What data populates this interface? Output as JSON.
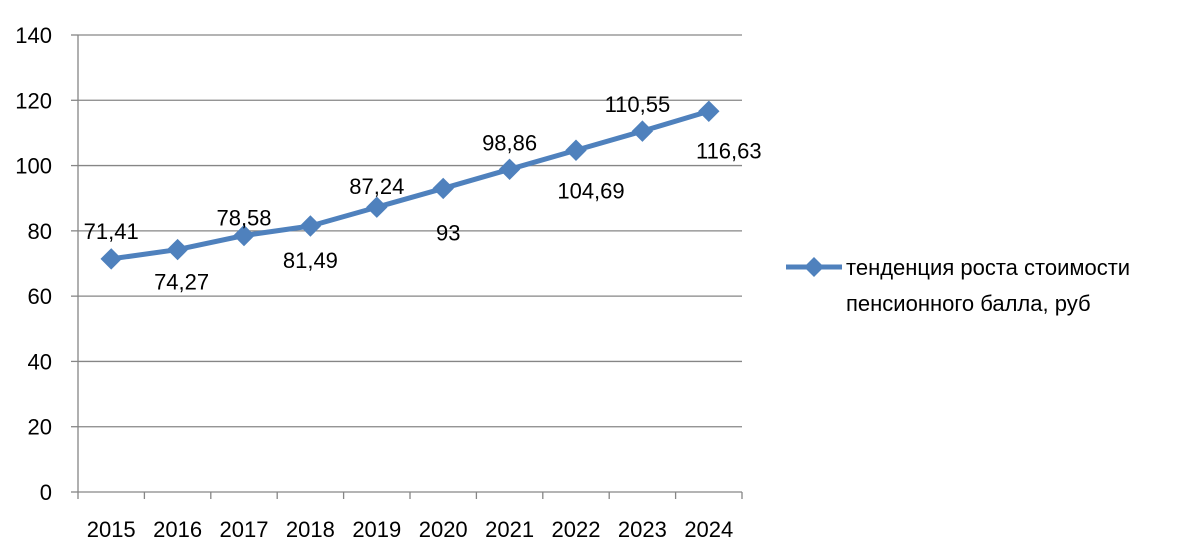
{
  "chart_data": {
    "type": "line",
    "categories": [
      "2015",
      "2016",
      "2017",
      "2018",
      "2019",
      "2020",
      "2021",
      "2022",
      "2023",
      "2024"
    ],
    "series": [
      {
        "name": "тенденция роста стоимости пенсионного балла, руб",
        "name_lines": [
          "тенденция роста стоимости",
          "пенсионного балла, руб"
        ],
        "values": [
          71.41,
          74.27,
          78.58,
          81.49,
          87.24,
          93,
          98.86,
          104.69,
          110.55,
          116.63
        ],
        "labels": [
          "71,41",
          "74,27",
          "78,58",
          "81,49",
          "87,24",
          "93",
          "98,86",
          "104,69",
          "110,55",
          "116,63"
        ],
        "color": "#4f81bd",
        "marker": "diamond"
      }
    ],
    "yticks": [
      "0",
      "20",
      "40",
      "60",
      "80",
      "100",
      "120",
      "140"
    ],
    "ylim": [
      0,
      140
    ],
    "grid": true,
    "legend": "right",
    "title": "",
    "xlabel": "",
    "ylabel": ""
  }
}
